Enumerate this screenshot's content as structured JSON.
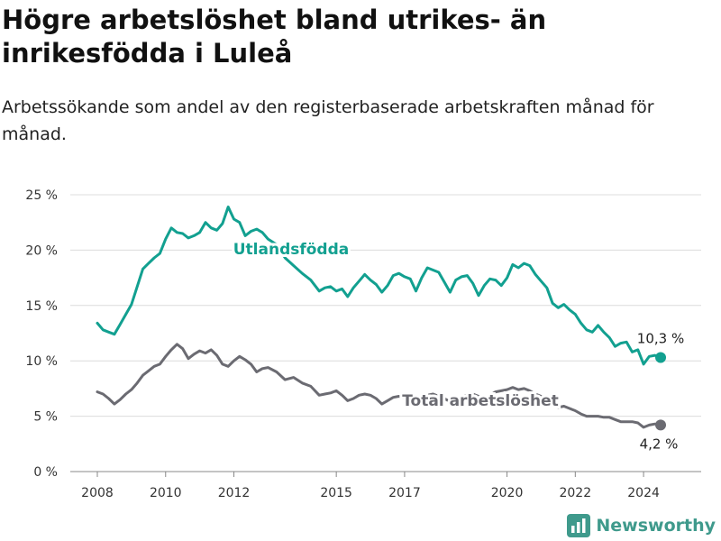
{
  "header": {
    "title": "Högre arbetslöshet bland utrikes- än inrikesfödda i Luleå",
    "subtitle": "Arbetssökande som andel av den registerbaserade arbetskraften månad för månad."
  },
  "brand": {
    "name": "Newsworthy",
    "icon": "newsworthy-logo-icon"
  },
  "chart_data": {
    "type": "line",
    "x_ticks": [
      "2008",
      "2010",
      "2012",
      "2015",
      "2017",
      "2020",
      "2022",
      "2024"
    ],
    "y_ticks": [
      "0 %",
      "5 %",
      "10 %",
      "15 %",
      "20 %",
      "25 %"
    ],
    "ylim": [
      0,
      25
    ],
    "grid": true,
    "series": [
      {
        "name": "Utlandsfödda",
        "color": "#12a090",
        "end_label": "10,3 %",
        "points": [
          [
            "2008-01",
            13.4
          ],
          [
            "2008-03",
            12.8
          ],
          [
            "2008-05",
            12.6
          ],
          [
            "2008-07",
            12.4
          ],
          [
            "2008-09",
            13.3
          ],
          [
            "2008-11",
            14.2
          ],
          [
            "2009-01",
            15.1
          ],
          [
            "2009-03",
            16.7
          ],
          [
            "2009-05",
            18.3
          ],
          [
            "2009-07",
            18.8
          ],
          [
            "2009-09",
            19.3
          ],
          [
            "2009-11",
            19.7
          ],
          [
            "2010-01",
            21.0
          ],
          [
            "2010-03",
            22.0
          ],
          [
            "2010-05",
            21.6
          ],
          [
            "2010-07",
            21.5
          ],
          [
            "2010-09",
            21.1
          ],
          [
            "2010-11",
            21.3
          ],
          [
            "2011-01",
            21.6
          ],
          [
            "2011-03",
            22.5
          ],
          [
            "2011-05",
            22.0
          ],
          [
            "2011-07",
            21.8
          ],
          [
            "2011-09",
            22.4
          ],
          [
            "2011-11",
            23.9
          ],
          [
            "2012-01",
            22.8
          ],
          [
            "2012-03",
            22.5
          ],
          [
            "2012-05",
            21.3
          ],
          [
            "2012-07",
            21.7
          ],
          [
            "2012-09",
            21.9
          ],
          [
            "2012-11",
            21.6
          ],
          [
            "2013-01",
            21.0
          ],
          [
            "2013-04",
            20.5
          ],
          [
            "2013-07",
            19.3
          ],
          [
            "2013-10",
            18.6
          ],
          [
            "2014-01",
            17.9
          ],
          [
            "2014-04",
            17.3
          ],
          [
            "2014-07",
            16.3
          ],
          [
            "2014-09",
            16.6
          ],
          [
            "2014-11",
            16.7
          ],
          [
            "2015-01",
            16.3
          ],
          [
            "2015-03",
            16.5
          ],
          [
            "2015-05",
            15.8
          ],
          [
            "2015-07",
            16.6
          ],
          [
            "2015-09",
            17.2
          ],
          [
            "2015-11",
            17.8
          ],
          [
            "2016-01",
            17.3
          ],
          [
            "2016-03",
            16.9
          ],
          [
            "2016-05",
            16.2
          ],
          [
            "2016-07",
            16.8
          ],
          [
            "2016-09",
            17.7
          ],
          [
            "2016-11",
            17.9
          ],
          [
            "2017-01",
            17.6
          ],
          [
            "2017-03",
            17.4
          ],
          [
            "2017-05",
            16.3
          ],
          [
            "2017-07",
            17.5
          ],
          [
            "2017-09",
            18.4
          ],
          [
            "2017-11",
            18.2
          ],
          [
            "2018-01",
            18.0
          ],
          [
            "2018-03",
            17.1
          ],
          [
            "2018-05",
            16.2
          ],
          [
            "2018-07",
            17.3
          ],
          [
            "2018-09",
            17.6
          ],
          [
            "2018-11",
            17.7
          ],
          [
            "2019-01",
            17.0
          ],
          [
            "2019-03",
            15.9
          ],
          [
            "2019-05",
            16.8
          ],
          [
            "2019-07",
            17.4
          ],
          [
            "2019-09",
            17.3
          ],
          [
            "2019-11",
            16.8
          ],
          [
            "2020-01",
            17.5
          ],
          [
            "2020-03",
            18.7
          ],
          [
            "2020-05",
            18.4
          ],
          [
            "2020-07",
            18.8
          ],
          [
            "2020-09",
            18.6
          ],
          [
            "2020-11",
            17.8
          ],
          [
            "2021-01",
            17.2
          ],
          [
            "2021-03",
            16.6
          ],
          [
            "2021-05",
            15.2
          ],
          [
            "2021-07",
            14.8
          ],
          [
            "2021-09",
            15.1
          ],
          [
            "2021-11",
            14.6
          ],
          [
            "2022-01",
            14.2
          ],
          [
            "2022-03",
            13.4
          ],
          [
            "2022-05",
            12.8
          ],
          [
            "2022-07",
            12.6
          ],
          [
            "2022-09",
            13.2
          ],
          [
            "2022-11",
            12.6
          ],
          [
            "2023-01",
            12.1
          ],
          [
            "2023-03",
            11.3
          ],
          [
            "2023-05",
            11.6
          ],
          [
            "2023-07",
            11.7
          ],
          [
            "2023-09",
            10.8
          ],
          [
            "2023-11",
            11.0
          ],
          [
            "2024-01",
            9.7
          ],
          [
            "2024-03",
            10.4
          ],
          [
            "2024-05",
            10.5
          ],
          [
            "2024-07",
            10.3
          ]
        ]
      },
      {
        "name": "Total arbetslöshet",
        "color": "#6b6b72",
        "end_label": "4,2 %",
        "points": [
          [
            "2008-01",
            7.2
          ],
          [
            "2008-03",
            7.0
          ],
          [
            "2008-05",
            6.6
          ],
          [
            "2008-07",
            6.1
          ],
          [
            "2008-09",
            6.5
          ],
          [
            "2008-11",
            7.0
          ],
          [
            "2009-01",
            7.4
          ],
          [
            "2009-03",
            8.0
          ],
          [
            "2009-05",
            8.7
          ],
          [
            "2009-07",
            9.1
          ],
          [
            "2009-09",
            9.5
          ],
          [
            "2009-11",
            9.7
          ],
          [
            "2010-01",
            10.4
          ],
          [
            "2010-03",
            11.0
          ],
          [
            "2010-05",
            11.5
          ],
          [
            "2010-07",
            11.1
          ],
          [
            "2010-09",
            10.2
          ],
          [
            "2010-11",
            10.6
          ],
          [
            "2011-01",
            10.9
          ],
          [
            "2011-03",
            10.7
          ],
          [
            "2011-05",
            11.0
          ],
          [
            "2011-07",
            10.5
          ],
          [
            "2011-09",
            9.7
          ],
          [
            "2011-11",
            9.5
          ],
          [
            "2012-01",
            10.0
          ],
          [
            "2012-03",
            10.4
          ],
          [
            "2012-05",
            10.1
          ],
          [
            "2012-07",
            9.7
          ],
          [
            "2012-09",
            9.0
          ],
          [
            "2012-11",
            9.3
          ],
          [
            "2013-01",
            9.4
          ],
          [
            "2013-04",
            9.0
          ],
          [
            "2013-07",
            8.3
          ],
          [
            "2013-10",
            8.5
          ],
          [
            "2014-01",
            8.0
          ],
          [
            "2014-04",
            7.7
          ],
          [
            "2014-07",
            6.9
          ],
          [
            "2014-09",
            7.0
          ],
          [
            "2014-11",
            7.1
          ],
          [
            "2015-01",
            7.3
          ],
          [
            "2015-03",
            6.9
          ],
          [
            "2015-05",
            6.4
          ],
          [
            "2015-07",
            6.6
          ],
          [
            "2015-09",
            6.9
          ],
          [
            "2015-11",
            7.0
          ],
          [
            "2016-01",
            6.9
          ],
          [
            "2016-03",
            6.6
          ],
          [
            "2016-05",
            6.1
          ],
          [
            "2016-07",
            6.4
          ],
          [
            "2016-09",
            6.7
          ],
          [
            "2016-11",
            6.8
          ],
          [
            "2017-01",
            6.6
          ],
          [
            "2017-03",
            6.4
          ],
          [
            "2017-05",
            6.1
          ],
          [
            "2017-07",
            6.5
          ],
          [
            "2017-09",
            6.9
          ],
          [
            "2017-11",
            7.0
          ],
          [
            "2018-01",
            6.8
          ],
          [
            "2018-03",
            6.6
          ],
          [
            "2018-05",
            6.3
          ],
          [
            "2018-07",
            6.5
          ],
          [
            "2018-09",
            6.8
          ],
          [
            "2018-11",
            6.9
          ],
          [
            "2019-01",
            7.0
          ],
          [
            "2019-03",
            6.8
          ],
          [
            "2019-05",
            6.5
          ],
          [
            "2019-07",
            6.9
          ],
          [
            "2019-09",
            7.2
          ],
          [
            "2019-11",
            7.3
          ],
          [
            "2020-01",
            7.4
          ],
          [
            "2020-03",
            7.6
          ],
          [
            "2020-05",
            7.4
          ],
          [
            "2020-07",
            7.5
          ],
          [
            "2020-09",
            7.3
          ],
          [
            "2020-11",
            7.0
          ],
          [
            "2021-01",
            6.8
          ],
          [
            "2021-03",
            6.5
          ],
          [
            "2021-05",
            6.1
          ],
          [
            "2021-07",
            5.8
          ],
          [
            "2021-09",
            5.9
          ],
          [
            "2021-11",
            5.7
          ],
          [
            "2022-01",
            5.5
          ],
          [
            "2022-03",
            5.2
          ],
          [
            "2022-05",
            5.0
          ],
          [
            "2022-07",
            5.0
          ],
          [
            "2022-09",
            5.0
          ],
          [
            "2022-11",
            4.9
          ],
          [
            "2023-01",
            4.9
          ],
          [
            "2023-03",
            4.7
          ],
          [
            "2023-05",
            4.5
          ],
          [
            "2023-07",
            4.5
          ],
          [
            "2023-09",
            4.5
          ],
          [
            "2023-11",
            4.4
          ],
          [
            "2024-01",
            4.0
          ],
          [
            "2024-03",
            4.2
          ],
          [
            "2024-05",
            4.3
          ],
          [
            "2024-07",
            4.2
          ]
        ]
      }
    ]
  }
}
